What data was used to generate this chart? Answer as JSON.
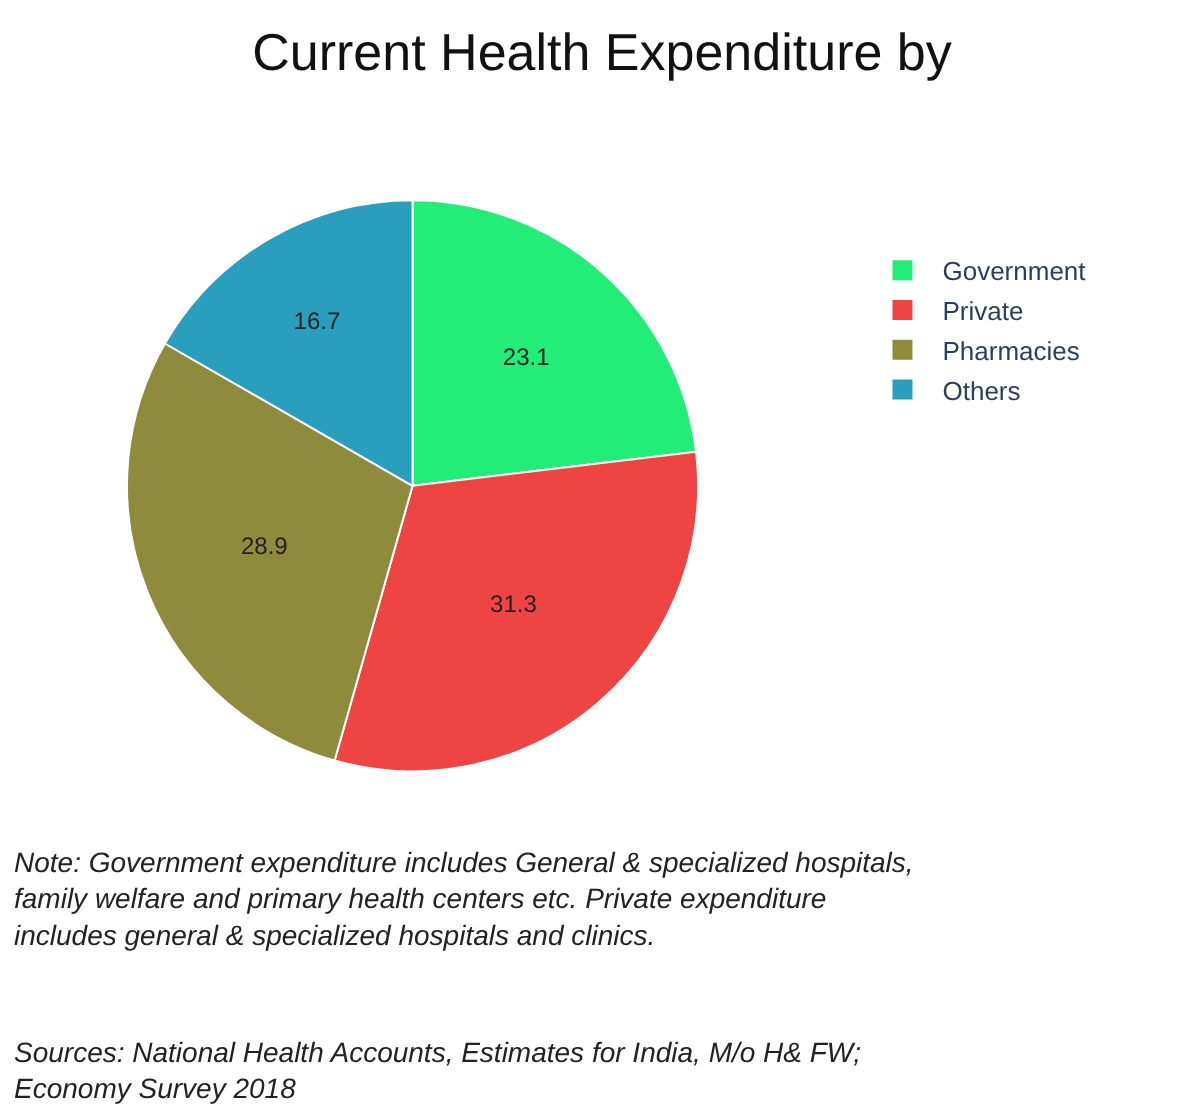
{
  "chart_data": {
    "type": "pie",
    "title": "Current Health Expenditure by",
    "categories": [
      "Government",
      "Private",
      "Pharmacies",
      "Others"
    ],
    "values": [
      23.1,
      31.3,
      28.9,
      16.7
    ],
    "colors": [
      "#22ee77",
      "#ee4444",
      "#8e8c3c",
      "#2a9fbd"
    ],
    "data_labels": true,
    "legend": "right",
    "annotations": [
      "Note: Government expenditure includes General & specialized hospitals, family welfare and primary health centers etc. Private expenditure includes general & specialized hospitals and clinics.",
      "Sources: National Health Accounts, Estimates for India, M/o H& FW; Economy Survey 2018"
    ]
  }
}
